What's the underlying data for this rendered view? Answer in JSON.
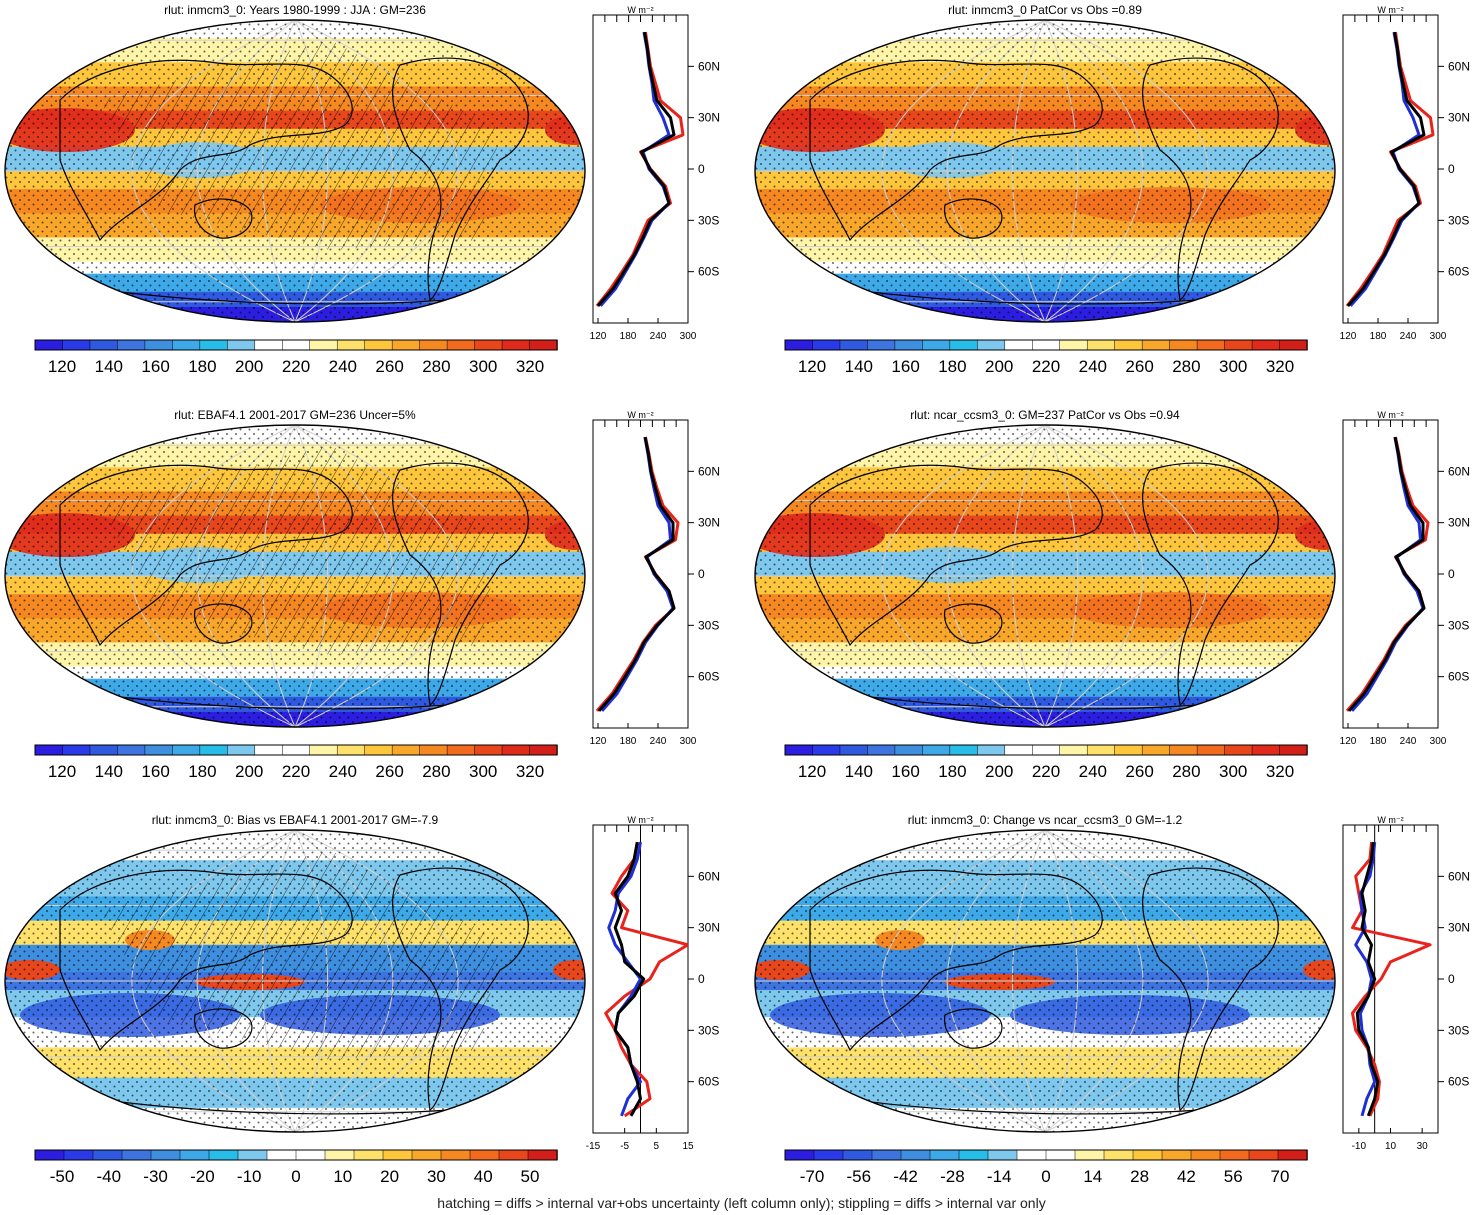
{
  "figure": {
    "footer": "hatching = diffs > internal var+obs uncertainty (left column only); stippling = diffs > internal var only",
    "profile_unit": "W m⁻²",
    "lat_labels": [
      "60N",
      "30N",
      "0",
      "30S",
      "60S"
    ]
  },
  "colormaps": {
    "absolute": [
      "#2c1ee0",
      "#2b3ae8",
      "#2f5ae0",
      "#3d74e0",
      "#3e8fe0",
      "#3ea9e8",
      "#28bde8",
      "#7ec8ee",
      "#ffffff",
      "#ffffff",
      "#fff5a8",
      "#fde16a",
      "#fdc63c",
      "#f9a72a",
      "#f68822",
      "#f16a1e",
      "#e8471c",
      "#e02a1c",
      "#d31f1a"
    ],
    "difference": [
      "#2c1ee0",
      "#2b3ae8",
      "#2f5ae0",
      "#3d74e0",
      "#3e8fe0",
      "#3ea9e8",
      "#28bde8",
      "#7ec8ee",
      "#ffffff",
      "#ffffff",
      "#fff5a8",
      "#fde16a",
      "#fdc63c",
      "#f9a72a",
      "#f68822",
      "#f16a1e",
      "#e8471c",
      "#d31f1a"
    ]
  },
  "chart_data": [
    {
      "type": "heatmap",
      "title": "rlut: inmcm3_0: Years 1980-1999 : JJA : GM=236",
      "colorbar_ticks": [
        "120",
        "140",
        "160",
        "180",
        "200",
        "220",
        "240",
        "260",
        "280",
        "300",
        "320"
      ],
      "colormap": "absolute",
      "profile": {
        "type": "line",
        "xlim": [
          110,
          300
        ],
        "xticks": [
          "120",
          "180",
          "240",
          "300"
        ],
        "lat": [
          -80,
          -70,
          -60,
          -50,
          -40,
          -30,
          -20,
          -10,
          0,
          10,
          20,
          30,
          40,
          50,
          60,
          70,
          80
        ],
        "series": [
          {
            "color": "#e8231c",
            "values": [
              118,
              145,
              168,
              190,
              205,
              220,
              265,
              255,
              225,
              205,
              290,
              285,
              245,
              235,
              225,
              220,
              215
            ]
          },
          {
            "color": "#1f2fd6",
            "values": [
              125,
              155,
              175,
              195,
              212,
              228,
              262,
              250,
              222,
              210,
              262,
              250,
              232,
              228,
              222,
              218,
              212
            ]
          },
          {
            "color": "#000000",
            "values": [
              120,
              150,
              172,
              193,
              210,
              225,
              262,
              252,
              224,
              207,
              272,
              265,
              238,
              230,
              223,
              219,
              213
            ]
          }
        ]
      }
    },
    {
      "type": "heatmap",
      "title": "rlut: inmcm3_0 PatCor vs Obs =0.89",
      "colorbar_ticks": [
        "120",
        "140",
        "160",
        "180",
        "200",
        "220",
        "240",
        "260",
        "280",
        "300",
        "320"
      ],
      "colormap": "absolute",
      "profile": {
        "type": "line",
        "xlim": [
          110,
          300
        ],
        "xticks": [
          "120",
          "180",
          "240",
          "300"
        ],
        "lat": [
          -80,
          -70,
          -60,
          -50,
          -40,
          -30,
          -20,
          -10,
          0,
          10,
          20,
          30,
          40,
          50,
          60,
          70,
          80
        ],
        "series": [
          {
            "color": "#e8231c",
            "values": [
              118,
              145,
              168,
              190,
              205,
              220,
              265,
              255,
              225,
              205,
              290,
              285,
              245,
              235,
              225,
              220,
              215
            ]
          },
          {
            "color": "#1f2fd6",
            "values": [
              125,
              155,
              175,
              195,
              212,
              228,
              262,
              250,
              222,
              210,
              262,
              250,
              232,
              228,
              222,
              218,
              212
            ]
          },
          {
            "color": "#000000",
            "values": [
              120,
              150,
              172,
              193,
              210,
              225,
              262,
              252,
              224,
              207,
              272,
              265,
              238,
              230,
              223,
              219,
              213
            ]
          }
        ]
      }
    },
    {
      "type": "heatmap",
      "title": "rlut: EBAF4.1 2001-2017 GM=236 Uncer=5%",
      "colorbar_ticks": [
        "120",
        "140",
        "160",
        "180",
        "200",
        "220",
        "240",
        "260",
        "280",
        "300",
        "320"
      ],
      "colormap": "absolute",
      "profile": {
        "type": "line",
        "xlim": [
          110,
          300
        ],
        "xticks": [
          "120",
          "180",
          "240",
          "300"
        ],
        "lat": [
          -80,
          -70,
          -60,
          -50,
          -40,
          -30,
          -20,
          -10,
          0,
          10,
          20,
          30,
          40,
          50,
          60,
          70,
          80
        ],
        "series": [
          {
            "color": "#e8231c",
            "values": [
              118,
              148,
              170,
              192,
              210,
              235,
              272,
              262,
              235,
              215,
              275,
              280,
              250,
              238,
              228,
              222,
              215
            ]
          },
          {
            "color": "#1f2fd6",
            "values": [
              128,
              158,
              178,
              198,
              215,
              240,
              270,
              258,
              232,
              218,
              265,
              262,
              240,
              232,
              225,
              220,
              214
            ]
          },
          {
            "color": "#000000",
            "values": [
              122,
              152,
              174,
              195,
              212,
              238,
              272,
              262,
              234,
              216,
              270,
              270,
              245,
              235,
              226,
              221,
              214
            ]
          }
        ]
      }
    },
    {
      "type": "heatmap",
      "title": "rlut: ncar_ccsm3_0: GM=237 PatCor vs Obs =0.94",
      "colorbar_ticks": [
        "120",
        "140",
        "160",
        "180",
        "200",
        "220",
        "240",
        "260",
        "280",
        "300",
        "320"
      ],
      "colormap": "absolute",
      "profile": {
        "type": "line",
        "xlim": [
          110,
          300
        ],
        "xticks": [
          "120",
          "180",
          "240",
          "300"
        ],
        "lat": [
          -80,
          -70,
          -60,
          -50,
          -40,
          -30,
          -20,
          -10,
          0,
          10,
          20,
          30,
          40,
          50,
          60,
          70,
          80
        ],
        "series": [
          {
            "color": "#e8231c",
            "values": [
              118,
              148,
              170,
              192,
              210,
              235,
              272,
              262,
              235,
              215,
              275,
              280,
              250,
              238,
              228,
              222,
              215
            ]
          },
          {
            "color": "#1f2fd6",
            "values": [
              128,
              158,
              178,
              198,
              215,
              240,
              270,
              258,
              232,
              218,
              265,
              262,
              240,
              232,
              225,
              220,
              214
            ]
          },
          {
            "color": "#000000",
            "values": [
              122,
              152,
              174,
              195,
              212,
              238,
              272,
              262,
              234,
              216,
              270,
              270,
              245,
              235,
              226,
              221,
              214
            ]
          }
        ]
      }
    },
    {
      "type": "heatmap",
      "title": "rlut: inmcm3_0: Bias vs EBAF4.1 2001-2017 GM=-7.9",
      "colorbar_ticks": [
        "-50",
        "-40",
        "-30",
        "-20",
        "-10",
        "0",
        "10",
        "20",
        "30",
        "40",
        "50"
      ],
      "colormap": "difference",
      "profile": {
        "type": "line",
        "xlim": [
          -15,
          15
        ],
        "xticks": [
          "-15",
          "-5",
          "5",
          "15"
        ],
        "zero_line": 0,
        "lat": [
          -80,
          -70,
          -60,
          -50,
          -40,
          -30,
          -20,
          -10,
          0,
          10,
          20,
          30,
          40,
          50,
          60,
          70,
          80
        ],
        "series": [
          {
            "color": "#e8231c",
            "values": [
              -5,
              3,
              2,
              -3,
              -6,
              -8,
              -11,
              -5,
              3,
              6,
              15,
              -6,
              -4,
              -9,
              -6,
              -2,
              -1
            ]
          },
          {
            "color": "#1f2fd6",
            "values": [
              -6,
              -4,
              0,
              -3,
              -4,
              -8,
              -7,
              -3,
              0,
              -4,
              -8,
              -10,
              -8,
              -7,
              -3,
              -1,
              0
            ]
          },
          {
            "color": "#000000",
            "values": [
              -3,
              0,
              -1,
              -3,
              -4,
              -8,
              -7,
              -2,
              1,
              -5,
              -6,
              -8,
              -6,
              -8,
              -4,
              -2,
              -1
            ]
          }
        ]
      }
    },
    {
      "type": "heatmap",
      "title": "rlut: inmcm3_0: Change vs ncar_ccsm3_0 GM=-1.2",
      "colorbar_ticks": [
        "-70",
        "-56",
        "-42",
        "-28",
        "-14",
        "0",
        "14",
        "28",
        "42",
        "56",
        "70"
      ],
      "colormap": "difference",
      "profile": {
        "type": "line",
        "xlim": [
          -20,
          40
        ],
        "xticks": [
          "-10",
          "10",
          "30"
        ],
        "zero_line": 0,
        "lat": [
          -80,
          -70,
          -60,
          -50,
          -40,
          -30,
          -20,
          -10,
          0,
          10,
          20,
          30,
          40,
          50,
          60,
          70,
          80
        ],
        "series": [
          {
            "color": "#e8231c",
            "values": [
              -3,
              2,
              3,
              0,
              -5,
              -12,
              -14,
              -6,
              4,
              10,
              35,
              -14,
              -8,
              -10,
              -12,
              -3,
              -2
            ]
          },
          {
            "color": "#1f2fd6",
            "values": [
              -8,
              -5,
              0,
              -3,
              -4,
              -8,
              -9,
              -4,
              -2,
              -5,
              -12,
              -6,
              -8,
              -9,
              -3,
              -1,
              0
            ]
          },
          {
            "color": "#000000",
            "values": [
              -4,
              0,
              2,
              -2,
              -4,
              -10,
              -11,
              -4,
              0,
              -4,
              -2,
              -8,
              -6,
              -8,
              -5,
              -2,
              -1
            ]
          }
        ]
      }
    }
  ]
}
